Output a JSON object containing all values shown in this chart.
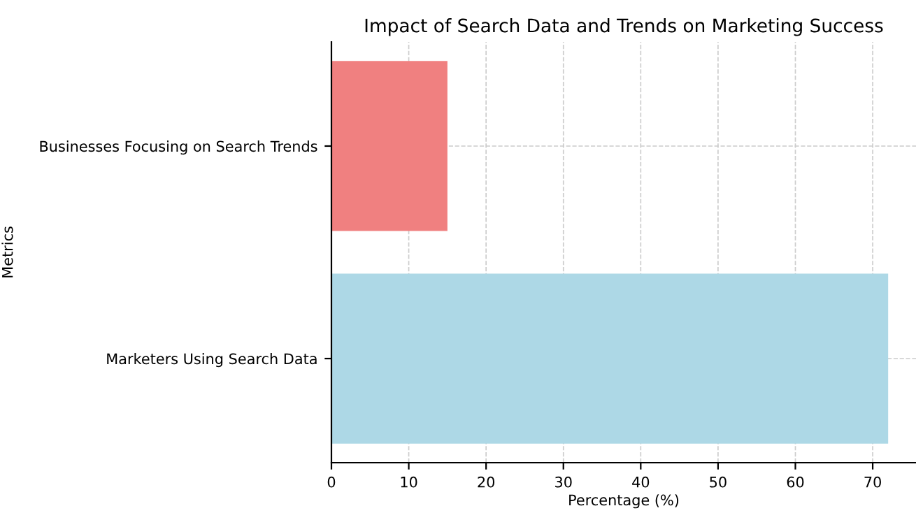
{
  "chart_data": {
    "type": "bar",
    "orientation": "horizontal",
    "title": "Impact of Search Data and Trends on Marketing Success",
    "xlabel": "Percentage (%)",
    "ylabel": "Metrics",
    "categories": [
      "Businesses Focusing on Search Trends",
      "Marketers Using Search Data"
    ],
    "values": [
      15,
      72
    ],
    "colors": [
      "#f08080",
      "#add8e6"
    ],
    "xlim": [
      0,
      75.6
    ],
    "xticks": [
      0,
      10,
      20,
      30,
      40,
      50,
      60,
      70
    ],
    "grid": true
  }
}
